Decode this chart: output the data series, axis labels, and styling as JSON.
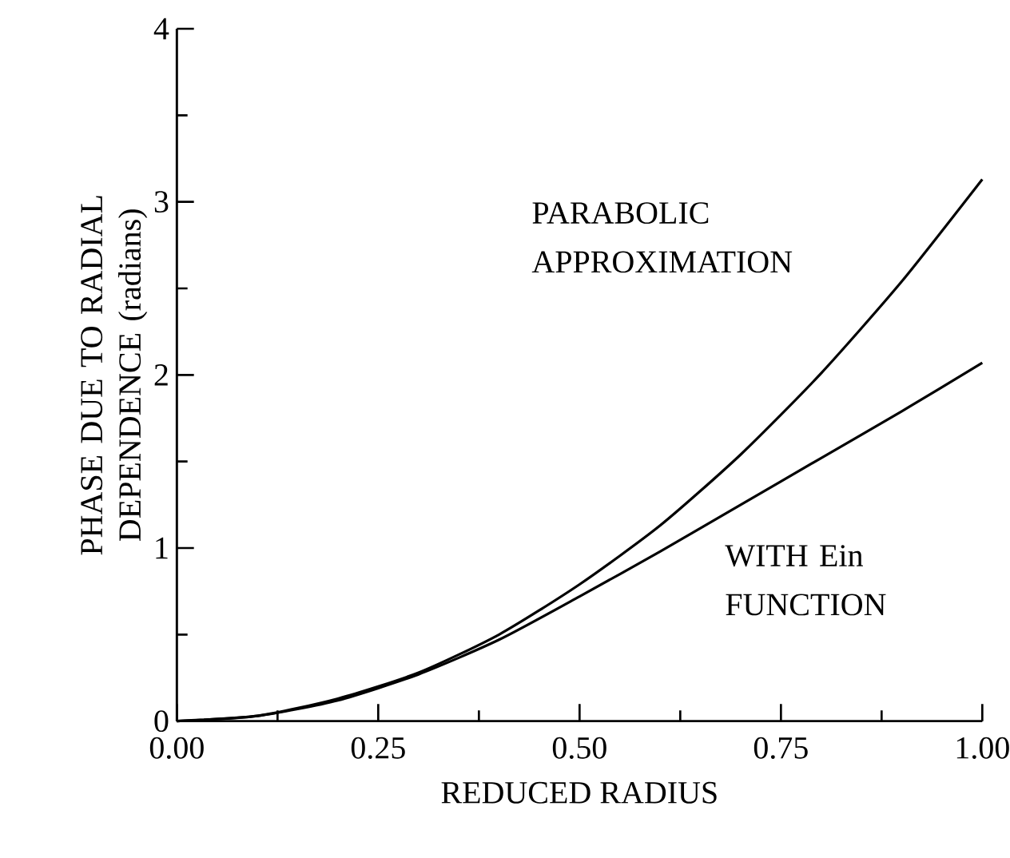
{
  "chart_data": {
    "type": "line",
    "xlabel": "REDUCED RADIUS",
    "ylabel": "PHASE DUE TO RADIAL DEPENDENCE (radians)",
    "x": [
      0,
      0.1,
      0.2,
      0.3,
      0.4,
      0.5,
      0.6,
      0.7,
      0.8,
      0.9,
      1.0
    ],
    "series": [
      {
        "name": "PARABOLIC APPROXIMATION",
        "color": "#000000",
        "values": [
          0,
          0.03,
          0.13,
          0.28,
          0.5,
          0.79,
          1.13,
          1.54,
          2.01,
          2.54,
          3.13
        ]
      },
      {
        "name": "WITH Ein FUNCTION",
        "color": "#000000",
        "values": [
          0,
          0.03,
          0.12,
          0.27,
          0.47,
          0.72,
          0.98,
          1.25,
          1.52,
          1.79,
          2.07
        ]
      }
    ],
    "xlim": [
      0,
      1
    ],
    "ylim": [
      0,
      4
    ],
    "xticks": [
      {
        "value": 0,
        "label": "0.00"
      },
      {
        "value": 0.125,
        "label": null
      },
      {
        "value": 0.25,
        "label": "0.25"
      },
      {
        "value": 0.375,
        "label": null
      },
      {
        "value": 0.5,
        "label": "0.50"
      },
      {
        "value": 0.625,
        "label": null
      },
      {
        "value": 0.75,
        "label": "0.75"
      },
      {
        "value": 0.875,
        "label": null
      },
      {
        "value": 1,
        "label": "1.00"
      }
    ],
    "yticks": [
      0,
      {
        "value": 0.5,
        "label": null
      },
      1,
      {
        "value": 1.5,
        "label": null
      },
      2,
      {
        "value": 2.5,
        "label": null
      },
      3,
      {
        "value": 3.5,
        "label": null
      },
      4
    ],
    "grid": false,
    "legend": false,
    "marker": "none",
    "line_style": "solid"
  }
}
